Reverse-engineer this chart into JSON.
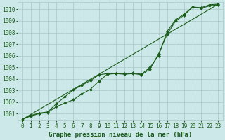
{
  "title": "Graphe pression niveau de la mer (hPa)",
  "xlabel_ticks": [
    0,
    1,
    2,
    3,
    4,
    5,
    6,
    7,
    8,
    9,
    10,
    11,
    12,
    13,
    14,
    15,
    16,
    17,
    18,
    19,
    20,
    21,
    22,
    23
  ],
  "ylim": [
    1000.4,
    1010.6
  ],
  "yticks": [
    1001,
    1002,
    1003,
    1004,
    1005,
    1006,
    1007,
    1008,
    1009,
    1010
  ],
  "bg_color": "#cce8e8",
  "grid_color": "#aac8c8",
  "line_color": "#1a5c1a",
  "marker_color": "#1a5c1a",
  "series1_x": [
    0,
    1,
    2,
    3,
    4,
    5,
    6,
    7,
    8,
    9,
    10,
    11,
    12,
    13,
    14,
    15,
    16,
    17,
    18,
    19,
    20,
    21,
    22,
    23
  ],
  "series1_y": [
    1000.5,
    1000.8,
    1001.0,
    1001.1,
    1001.6,
    1001.9,
    1002.2,
    1002.7,
    1003.1,
    1003.8,
    1004.4,
    1004.45,
    1004.4,
    1004.45,
    1004.35,
    1004.85,
    1006.15,
    1007.85,
    1009.0,
    1009.5,
    1010.2,
    1010.1,
    1010.3,
    1010.4
  ],
  "series2_x": [
    0,
    1,
    2,
    3,
    4,
    5,
    6,
    7,
    8,
    9,
    10,
    11,
    12,
    13,
    14,
    15,
    16,
    17,
    18,
    19,
    20,
    21,
    22,
    23
  ],
  "series2_y": [
    1000.5,
    1000.85,
    1001.05,
    1001.15,
    1001.85,
    1002.45,
    1003.05,
    1003.45,
    1003.85,
    1004.35,
    1004.45,
    1004.45,
    1004.45,
    1004.5,
    1004.4,
    1005.0,
    1006.0,
    1008.1,
    1009.1,
    1009.6,
    1010.2,
    1010.15,
    1010.4,
    1010.45
  ],
  "series3_x": [
    0,
    23
  ],
  "series3_y": [
    1000.5,
    1010.45
  ],
  "title_fontsize": 6.5,
  "tick_fontsize": 5.5,
  "figsize": [
    3.2,
    2.0
  ],
  "dpi": 100
}
